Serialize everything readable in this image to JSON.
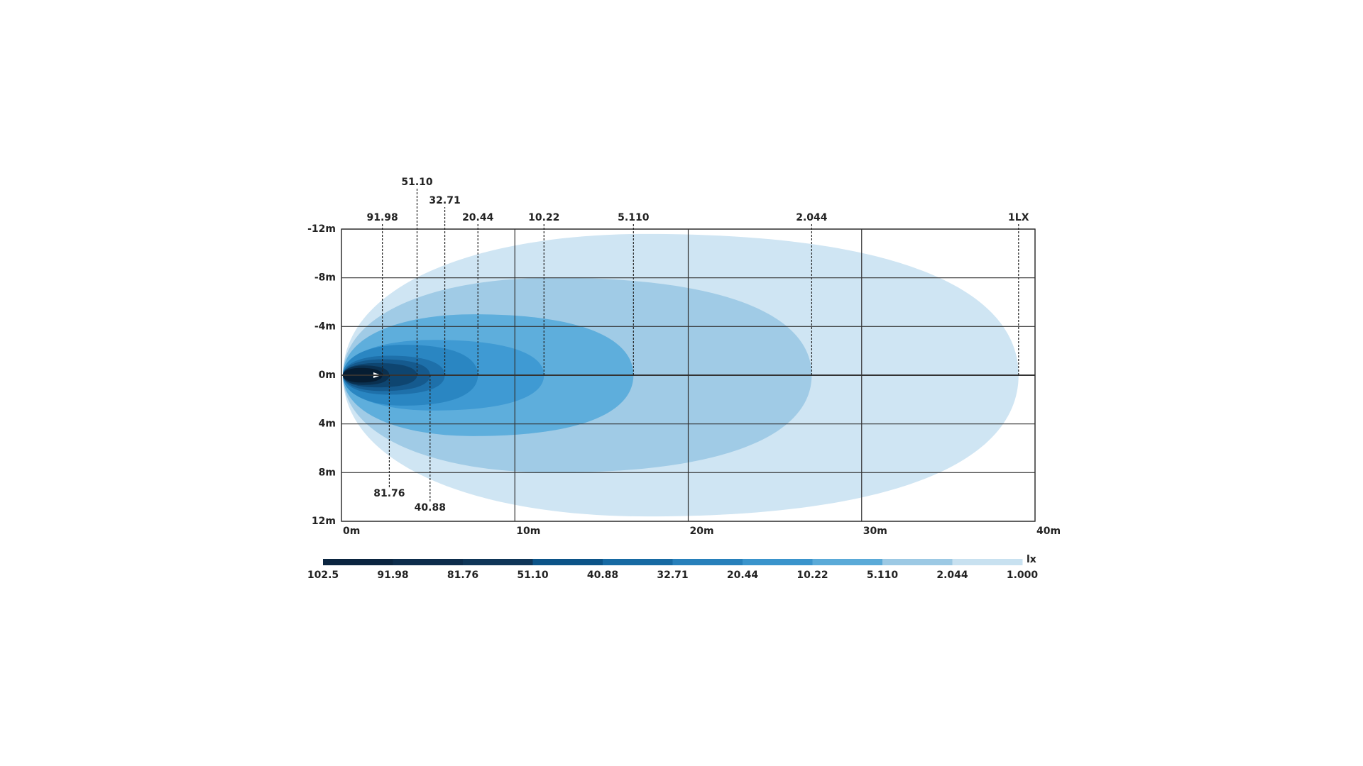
{
  "chart_data": {
    "type": "isolux",
    "xlim": [
      0,
      40
    ],
    "xticks": [
      {
        "value": 0,
        "label": "0m"
      },
      {
        "value": 10,
        "label": "10m"
      },
      {
        "value": 20,
        "label": "20m"
      },
      {
        "value": 30,
        "label": "30m"
      },
      {
        "value": 40,
        "label": "40m"
      }
    ],
    "ylim": [
      -12,
      12
    ],
    "yticks": [
      {
        "value": -12,
        "label": "-12m"
      },
      {
        "value": -8,
        "label": "-8m"
      },
      {
        "value": -4,
        "label": "-4m"
      },
      {
        "value": 0,
        "label": "0m"
      },
      {
        "value": 4,
        "label": "4m"
      },
      {
        "value": 8,
        "label": "8m"
      },
      {
        "value": 12,
        "label": "12m"
      }
    ],
    "grid": true,
    "contours": [
      {
        "label": "91.98",
        "reach": 2.36,
        "halfwidth": 0.6,
        "color": "#061d33",
        "label_side": "top"
      },
      {
        "label": "81.76",
        "reach": 2.76,
        "halfwidth": 0.8,
        "color": "#0a3050",
        "label_side": "bottom"
      },
      {
        "label": "51.10",
        "reach": 4.36,
        "halfwidth": 1.0,
        "color": "#0e4570",
        "label_side": "top"
      },
      {
        "label": "40.88",
        "reach": 5.11,
        "halfwidth": 1.3,
        "color": "#155a8e",
        "label_side": "bottom"
      },
      {
        "label": "32.71",
        "reach": 5.96,
        "halfwidth": 1.6,
        "color": "#1e70aa",
        "label_side": "top"
      },
      {
        "label": "20.44",
        "reach": 7.87,
        "halfwidth": 2.5,
        "color": "#2a86c2",
        "label_side": "top"
      },
      {
        "label": "10.22",
        "reach": 11.68,
        "halfwidth": 2.9,
        "color": "#3f9ad3",
        "label_side": "top"
      },
      {
        "label": "5.110",
        "reach": 16.84,
        "halfwidth": 5.0,
        "color": "#5eaedc",
        "label_side": "top"
      },
      {
        "label": "2.044",
        "reach": 27.12,
        "halfwidth": 8.0,
        "color": "#a0cbe6",
        "label_side": "top"
      },
      {
        "label": "1LX",
        "reach": 39.05,
        "halfwidth": 11.6,
        "color": "#cfe5f3",
        "label_side": "top"
      }
    ],
    "colorbar": {
      "unit": "lx",
      "labels": [
        "102.5",
        "91.98",
        "81.76",
        "51.10",
        "40.88",
        "32.71",
        "20.44",
        "10.22",
        "5.110",
        "2.044",
        "1.000"
      ],
      "colors": [
        "#0b2540",
        "#0d2d4c",
        "#0f3658",
        "#0c5488",
        "#176aa3",
        "#2780bb",
        "#3a94cc",
        "#5aaad8",
        "#9cc9e4",
        "#c8e1f0"
      ]
    }
  }
}
